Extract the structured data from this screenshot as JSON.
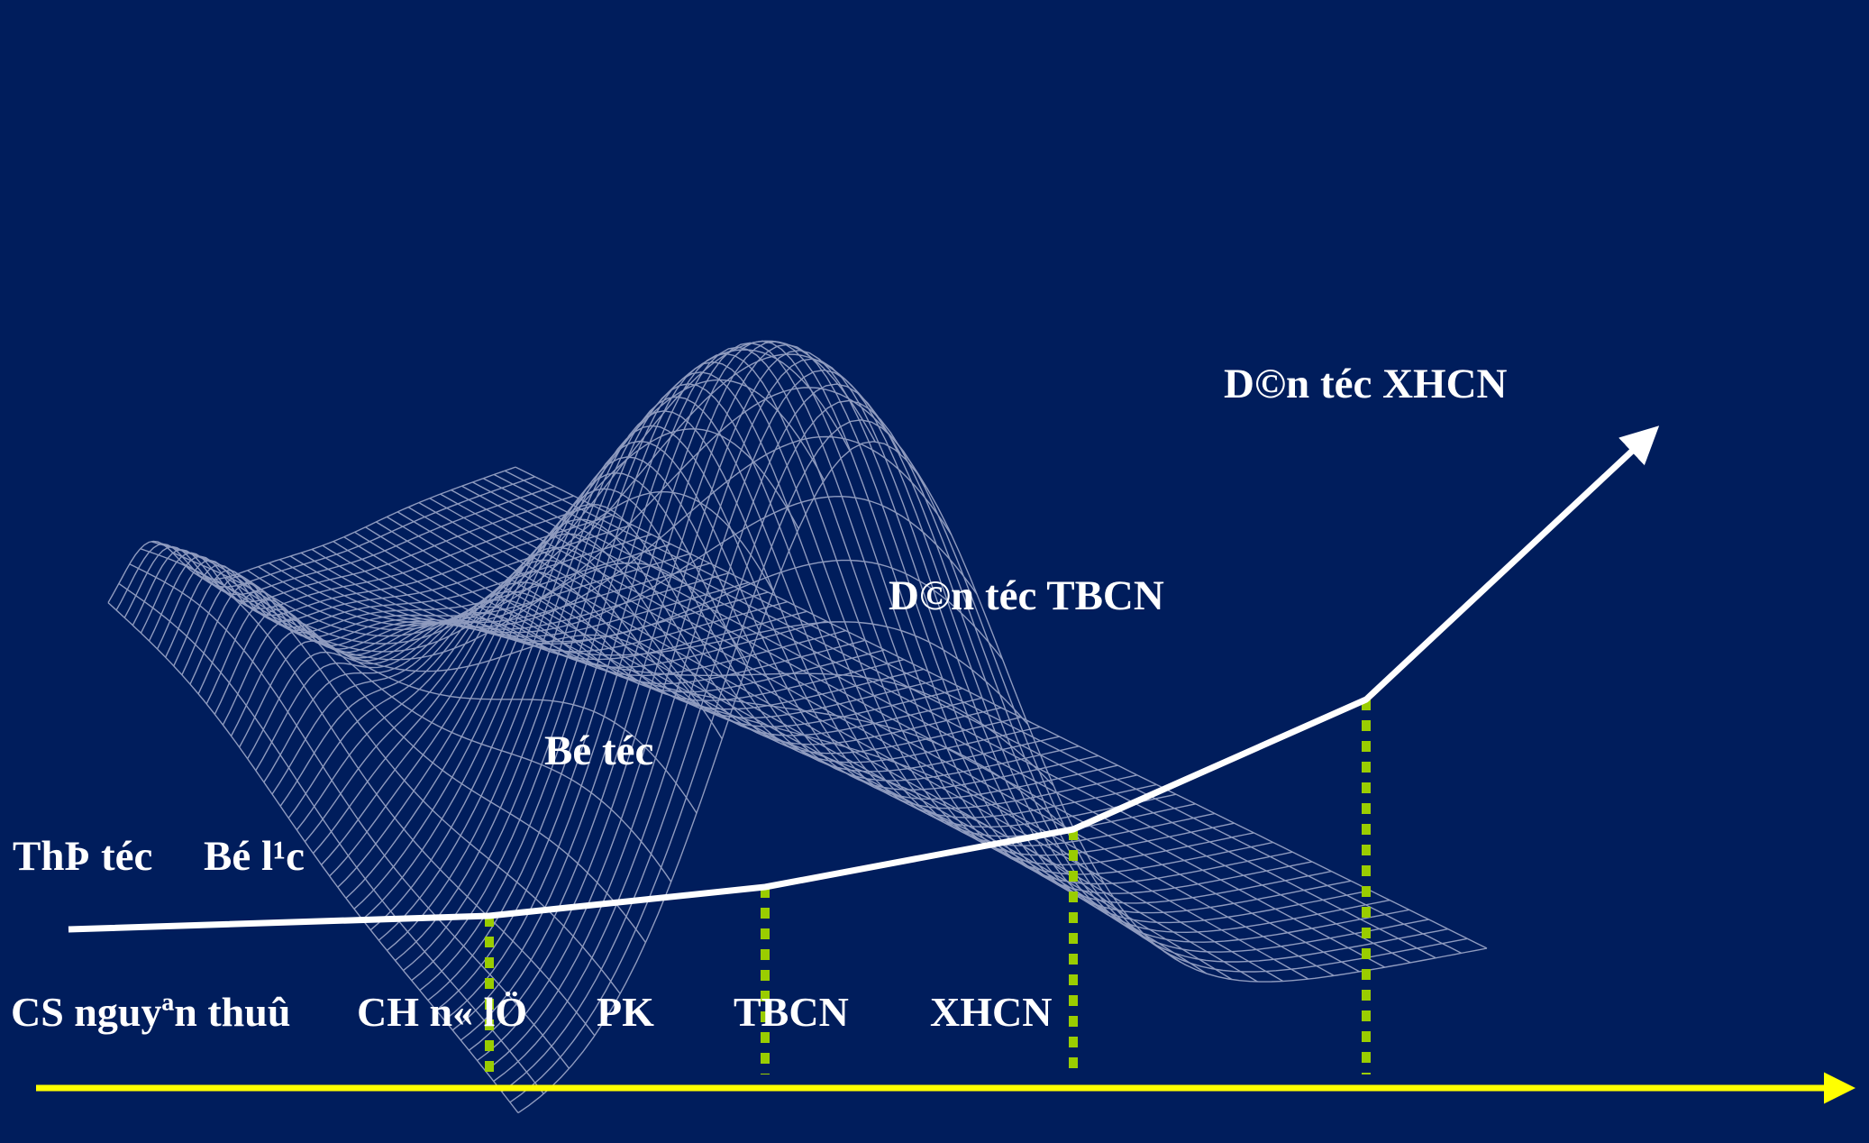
{
  "colors": {
    "background": "#001d5c",
    "mesh": "#8f9bbf",
    "trend_line": "#ffffff",
    "time_axis": "#ffff00",
    "dividers": "#9acd00"
  },
  "community_labels": {
    "thi_toc": "ThÞ téc",
    "bo_lac": "Bé l¹c",
    "bo_toc": "Bé téc",
    "dan_toc_tbcn": "D©n téc TBCN",
    "dan_toc_xhcn": "D©n téc XHCN"
  },
  "era_labels": {
    "cs_nguyen_thuy": "CS nguyªn thuû",
    "ch_no_le": "CH n« lÖ",
    "pk": "PK",
    "tbcn": "TBCN",
    "xhcn": "XHCN"
  }
}
